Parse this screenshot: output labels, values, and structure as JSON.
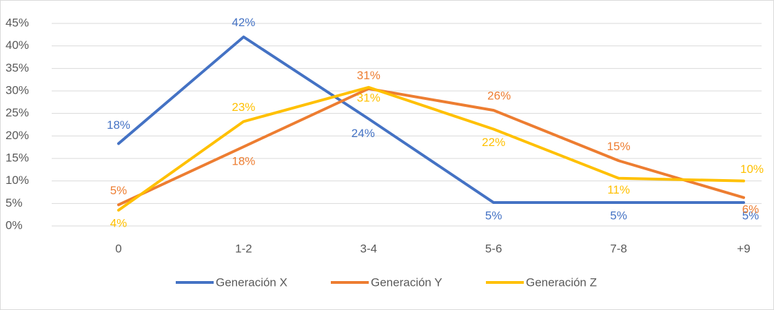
{
  "chart_data": {
    "type": "line",
    "categories": [
      "0",
      "1-2",
      "3-4",
      "5-6",
      "7-8",
      "+9"
    ],
    "series": [
      {
        "name": "Generación X",
        "color": "#4472c4",
        "values": [
          18.3,
          42,
          23.8,
          5.2,
          5.2,
          5.2
        ],
        "value_labels": [
          "18%",
          "42%",
          "24%",
          "5%",
          "5%",
          "5%"
        ]
      },
      {
        "name": "Generación Y",
        "color": "#ed7d31",
        "values": [
          4.7,
          17.6,
          30.5,
          25.7,
          14.5,
          6.3
        ],
        "value_labels": [
          "5%",
          "18%",
          "31%",
          "26%",
          "15%",
          "6%"
        ]
      },
      {
        "name": "Generación Z",
        "color": "#ffc000",
        "values": [
          3.5,
          23.2,
          30.8,
          21.5,
          10.6,
          10
        ],
        "value_labels": [
          "4%",
          "23%",
          "31%",
          "22%",
          "11%",
          "10%"
        ]
      }
    ],
    "ylim": [
      0,
      45
    ],
    "yticks": [
      {
        "value": 0,
        "label": "0%"
      },
      {
        "value": 5,
        "label": "5%"
      },
      {
        "value": 10,
        "label": "10%"
      },
      {
        "value": 15,
        "label": "15%"
      },
      {
        "value": 20,
        "label": "20%"
      },
      {
        "value": 25,
        "label": "25%"
      },
      {
        "value": 30,
        "label": "30%"
      },
      {
        "value": 35,
        "label": "35%"
      },
      {
        "value": 40,
        "label": "40%"
      },
      {
        "value": 45,
        "label": "45%"
      }
    ],
    "grid": true,
    "legend": "bottom"
  }
}
